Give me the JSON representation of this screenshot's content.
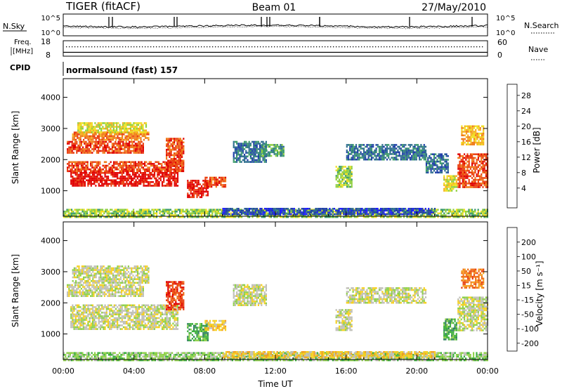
{
  "header": {
    "title": "TIGER (fitACF)",
    "beam": "Beam 01",
    "date": "27/May/2010",
    "mode": "normalsound (fast) 157"
  },
  "aux": {
    "nsky_label": "N.Sky",
    "nsky_ticks": [
      "10^5",
      "10^0"
    ],
    "nsearch_label": "N.Search",
    "nsearch_ticks": [
      "10^5",
      "10^0"
    ],
    "freq_label_1": "Freq.",
    "freq_label_2": "[MHz]",
    "freq_ticks": [
      "18",
      "8"
    ],
    "nave_label": "Nave",
    "nave_ticks": [
      "60",
      "0"
    ],
    "cpid_label": "CPID"
  },
  "chart_data": [
    {
      "type": "heatmap",
      "name": "power-panel",
      "ylabel": "Slant Range [km]",
      "xlabel": "Time UT",
      "x_ticks": [
        "00:00",
        "04:00",
        "08:00",
        "12:00",
        "16:00",
        "20:00",
        "00:00"
      ],
      "y_ticks": [
        1000,
        2000,
        3000,
        4000
      ],
      "ylim": [
        180,
        4600
      ],
      "xlim_hours": [
        0,
        24
      ],
      "colorbar": {
        "label": "Power [dB]",
        "ticks": [
          "4",
          "8",
          "12",
          "16",
          "20",
          "24",
          "28"
        ],
        "colors": [
          "#1a1aff",
          "#1f3fa8",
          "#2f6f8f",
          "#3c9b6a",
          "#8fcf3f",
          "#f0e020",
          "#f5b020",
          "#f07a18",
          "#ea4010",
          "#e00000"
        ]
      },
      "regions": [
        {
          "t0": 0.4,
          "t1": 6.5,
          "r0": 1150,
          "r1": 1600,
          "level": 9
        },
        {
          "t0": 0.2,
          "t1": 6.8,
          "r0": 1600,
          "r1": 1950,
          "level": 8
        },
        {
          "t0": 0.2,
          "t1": 4.5,
          "r0": 2200,
          "r1": 2600,
          "level": 8
        },
        {
          "t0": 0.5,
          "t1": 4.8,
          "r0": 2650,
          "r1": 2900,
          "level": 7
        },
        {
          "t0": 0.8,
          "t1": 4.7,
          "r0": 2900,
          "r1": 3200,
          "level": 5
        },
        {
          "t0": 5.8,
          "t1": 6.8,
          "r0": 1800,
          "r1": 2700,
          "level": 8
        },
        {
          "t0": 7.0,
          "t1": 8.2,
          "r0": 800,
          "r1": 1350,
          "level": 9
        },
        {
          "t0": 8.0,
          "t1": 9.2,
          "r0": 1100,
          "r1": 1450,
          "level": 8
        },
        {
          "t0": 9.6,
          "t1": 11.5,
          "r0": 1900,
          "r1": 2600,
          "level": 2
        },
        {
          "t0": 11.2,
          "t1": 12.5,
          "r0": 2100,
          "r1": 2500,
          "level": 3
        },
        {
          "t0": 15.4,
          "t1": 16.3,
          "r0": 1100,
          "r1": 1800,
          "level": 4
        },
        {
          "t0": 16.0,
          "t1": 20.5,
          "r0": 2000,
          "r1": 2500,
          "level": 2
        },
        {
          "t0": 20.5,
          "t1": 21.8,
          "r0": 1600,
          "r1": 2200,
          "level": 2
        },
        {
          "t0": 21.5,
          "t1": 22.2,
          "r0": 1000,
          "r1": 1500,
          "level": 5
        },
        {
          "t0": 22.3,
          "t1": 24.0,
          "r0": 1100,
          "r1": 2200,
          "level": 8
        },
        {
          "t0": 22.5,
          "t1": 23.8,
          "r0": 2500,
          "r1": 3100,
          "level": 6
        },
        {
          "t0": 0.0,
          "t1": 24.0,
          "r0": 180,
          "r1": 420,
          "level": 4
        },
        {
          "t0": 9.0,
          "t1": 21.0,
          "r0": 250,
          "r1": 450,
          "level": 1
        }
      ]
    },
    {
      "type": "heatmap",
      "name": "velocity-panel",
      "ylabel": "Slant Range [km]",
      "xlabel": "Time UT",
      "x_ticks": [
        "00:00",
        "04:00",
        "08:00",
        "12:00",
        "16:00",
        "20:00",
        "00:00"
      ],
      "y_ticks": [
        1000,
        2000,
        3000,
        4000
      ],
      "ylim": [
        180,
        4600
      ],
      "xlim_hours": [
        0,
        24
      ],
      "colorbar": {
        "label": "Velocity [m s⁻¹]",
        "ticks": [
          "200",
          "100",
          "50",
          "15",
          "-15",
          "-50",
          "-100",
          "-200"
        ],
        "colors": [
          "#1a1aff",
          "#1f3fa8",
          "#2f7f5f",
          "#3caf3c",
          "#8fd04a",
          "#c0c0b8",
          "#f5d020",
          "#f5a020",
          "#f07018",
          "#e84010",
          "#e00000"
        ]
      },
      "regions": [
        {
          "t0": 0.4,
          "t1": 6.5,
          "r0": 1150,
          "r1": 1950,
          "level": 5
        },
        {
          "t0": 0.2,
          "t1": 4.5,
          "r0": 2200,
          "r1": 2600,
          "level": 5
        },
        {
          "t0": 0.5,
          "t1": 4.8,
          "r0": 2650,
          "r1": 3200,
          "level": 5
        },
        {
          "t0": 5.8,
          "t1": 6.8,
          "r0": 1800,
          "r1": 2700,
          "level": 9
        },
        {
          "t0": 7.0,
          "t1": 8.2,
          "r0": 800,
          "r1": 1350,
          "level": 3
        },
        {
          "t0": 8.0,
          "t1": 9.2,
          "r0": 1100,
          "r1": 1450,
          "level": 6
        },
        {
          "t0": 9.6,
          "t1": 11.5,
          "r0": 1900,
          "r1": 2600,
          "level": 5
        },
        {
          "t0": 15.4,
          "t1": 16.3,
          "r0": 1100,
          "r1": 1800,
          "level": 5
        },
        {
          "t0": 16.0,
          "t1": 20.5,
          "r0": 2000,
          "r1": 2500,
          "level": 5
        },
        {
          "t0": 21.5,
          "t1": 22.2,
          "r0": 800,
          "r1": 1500,
          "level": 3
        },
        {
          "t0": 22.3,
          "t1": 24.0,
          "r0": 1100,
          "r1": 2200,
          "level": 5
        },
        {
          "t0": 22.5,
          "t1": 23.8,
          "r0": 2500,
          "r1": 3100,
          "level": 8
        },
        {
          "t0": 0.0,
          "t1": 24.0,
          "r0": 180,
          "r1": 420,
          "level": 4
        },
        {
          "t0": 9.0,
          "t1": 21.0,
          "r0": 250,
          "r1": 450,
          "level": 6
        }
      ]
    }
  ]
}
